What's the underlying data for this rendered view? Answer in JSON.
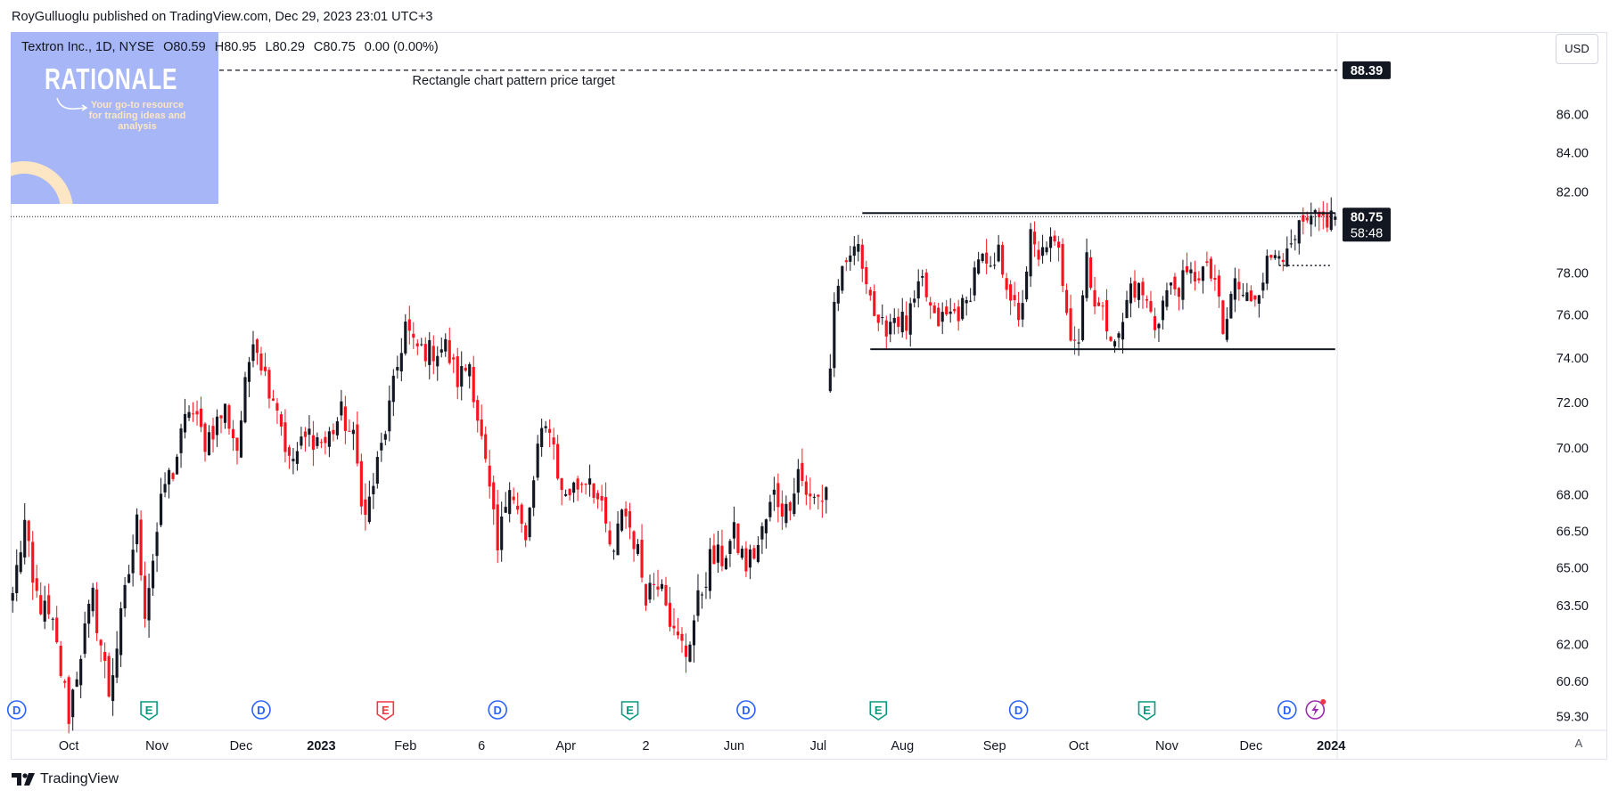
{
  "publisher_line": "RoyGulluoglu published on TradingView.com, Dec 29, 2023 23:01 UTC+3",
  "legend": {
    "symbol": "Textron Inc., 1D, NYSE",
    "open": "O80.59",
    "high": "H80.95",
    "low": "L80.29",
    "close": "C80.75",
    "change": "0.00 (0.00%)"
  },
  "currency_button": "USD",
  "auto_scale_button": "A",
  "logo": {
    "title": "RATIONALE",
    "tagline": "Your go-to resource for trading ideas and analysis"
  },
  "brand": "TradingView",
  "colors": {
    "up": "#131722",
    "down": "#f7141e",
    "event_dividend": "#2962ff",
    "event_earnings_beat": "#089981",
    "event_earnings_miss": "#f23645",
    "event_split": "#9c27b0"
  },
  "chart_data": {
    "type": "candlestick",
    "title": "Textron Inc., 1D, NYSE",
    "scale": "log",
    "ylim": [
      58.8,
      90.5
    ],
    "y_tick_labels": [
      "59.30",
      "60.60",
      "62.00",
      "63.50",
      "65.00",
      "66.50",
      "68.00",
      "70.00",
      "72.00",
      "74.00",
      "76.00",
      "78.00",
      "82.00",
      "84.00",
      "86.00"
    ],
    "x_tick_labels": [
      {
        "label": "Oct",
        "index": 14,
        "bold": false
      },
      {
        "label": "Nov",
        "index": 36,
        "bold": false
      },
      {
        "label": "Dec",
        "index": 57,
        "bold": false
      },
      {
        "label": "2023",
        "index": 77,
        "bold": true
      },
      {
        "label": "Feb",
        "index": 98,
        "bold": false
      },
      {
        "label": "6",
        "index": 117,
        "bold": false
      },
      {
        "label": "Apr",
        "index": 138,
        "bold": false
      },
      {
        "label": "2",
        "index": 158,
        "bold": false
      },
      {
        "label": "Jun",
        "index": 180,
        "bold": false
      },
      {
        "label": "Jul",
        "index": 201,
        "bold": false
      },
      {
        "label": "Aug",
        "index": 222,
        "bold": false
      },
      {
        "label": "Sep",
        "index": 245,
        "bold": false
      },
      {
        "label": "Oct",
        "index": 266,
        "bold": false
      },
      {
        "label": "Nov",
        "index": 288,
        "bold": false
      },
      {
        "label": "Dec",
        "index": 309,
        "bold": false
      },
      {
        "label": "2024",
        "index": 329,
        "bold": true
      }
    ],
    "bars": 331,
    "price_path": [
      [
        0,
        64.0
      ],
      [
        3,
        66.8
      ],
      [
        5,
        64.2
      ],
      [
        10,
        62.6
      ],
      [
        14,
        59.4
      ],
      [
        17,
        61.8
      ],
      [
        20,
        63.8
      ],
      [
        24,
        60.2
      ],
      [
        27,
        62.9
      ],
      [
        31,
        66.8
      ],
      [
        33,
        63.4
      ],
      [
        38,
        68.5
      ],
      [
        40,
        69.0
      ],
      [
        44,
        71.8
      ],
      [
        48,
        70.3
      ],
      [
        53,
        71.7
      ],
      [
        56,
        70.0
      ],
      [
        60,
        75.2
      ],
      [
        63,
        73.2
      ],
      [
        66,
        71.9
      ],
      [
        69,
        69.3
      ],
      [
        74,
        70.6
      ],
      [
        78,
        70.2
      ],
      [
        82,
        71.5
      ],
      [
        85,
        70.3
      ],
      [
        88,
        67.0
      ],
      [
        92,
        70.0
      ],
      [
        95,
        72.6
      ],
      [
        98,
        75.6
      ],
      [
        100,
        74.5
      ],
      [
        104,
        74.3
      ],
      [
        108,
        74.5
      ],
      [
        111,
        73.0
      ],
      [
        114,
        73.8
      ],
      [
        116,
        71.4
      ],
      [
        119,
        68.0
      ],
      [
        121,
        65.6
      ],
      [
        124,
        68.8
      ],
      [
        128,
        65.9
      ],
      [
        131,
        70.0
      ],
      [
        134,
        71.1
      ],
      [
        137,
        68.0
      ],
      [
        141,
        68.4
      ],
      [
        144,
        68.9
      ],
      [
        147,
        67.2
      ],
      [
        150,
        65.3
      ],
      [
        152,
        67.6
      ],
      [
        155,
        66.2
      ],
      [
        158,
        64.1
      ],
      [
        162,
        64.8
      ],
      [
        165,
        62.3
      ],
      [
        168,
        61.7
      ],
      [
        171,
        63.6
      ],
      [
        174,
        65.3
      ],
      [
        177,
        65.4
      ],
      [
        180,
        66.3
      ],
      [
        183,
        65.1
      ],
      [
        186,
        65.9
      ],
      [
        190,
        68.0
      ],
      [
        193,
        67.3
      ],
      [
        196,
        69.1
      ],
      [
        199,
        67.7
      ],
      [
        202,
        67.9
      ],
      [
        203,
        68.4
      ],
      [
        204,
        73.6
      ],
      [
        205,
        76.5
      ],
      [
        206,
        77.6
      ],
      [
        208,
        78.0
      ],
      [
        210,
        79.4
      ],
      [
        213,
        78.0
      ],
      [
        216,
        75.1
      ],
      [
        220,
        76.0
      ],
      [
        223,
        75.5
      ],
      [
        227,
        77.5
      ],
      [
        230,
        75.6
      ],
      [
        233,
        75.9
      ],
      [
        236,
        76.2
      ],
      [
        238,
        76.4
      ],
      [
        241,
        78.9
      ],
      [
        244,
        77.8
      ],
      [
        246,
        78.9
      ],
      [
        249,
        77.0
      ],
      [
        251,
        75.4
      ],
      [
        254,
        79.7
      ],
      [
        256,
        78.4
      ],
      [
        258,
        79.6
      ],
      [
        261,
        78.9
      ],
      [
        264,
        75.3
      ],
      [
        266,
        74.9
      ],
      [
        268,
        79.0
      ],
      [
        270,
        76.6
      ],
      [
        273,
        75.6
      ],
      [
        276,
        74.8
      ],
      [
        279,
        77.4
      ],
      [
        282,
        77.0
      ],
      [
        285,
        75.5
      ],
      [
        288,
        77.1
      ],
      [
        291,
        77.4
      ],
      [
        294,
        77.8
      ],
      [
        297,
        78.1
      ],
      [
        300,
        77.7
      ],
      [
        302,
        74.9
      ],
      [
        305,
        77.7
      ],
      [
        307,
        76.7
      ],
      [
        310,
        77.0
      ],
      [
        313,
        78.4
      ],
      [
        316,
        79.4
      ],
      [
        318,
        78.6
      ],
      [
        321,
        80.0
      ],
      [
        323,
        80.3
      ],
      [
        325,
        80.5
      ],
      [
        327,
        80.6
      ],
      [
        330,
        80.75
      ]
    ],
    "last_price": 80.75,
    "price_label": "80.75",
    "countdown_label": "58:48",
    "target_price": 88.39,
    "target_label": "88.39",
    "annotation_target": "Rectangle chart pattern price target",
    "lines": {
      "rectangle_top": {
        "price": 80.75,
        "from_index": 212,
        "to_index": 330
      },
      "rectangle_bottom": {
        "price": 74.4,
        "from_index": 214,
        "to_index": 330
      },
      "dotted_mid": {
        "price": 78.35,
        "from_index": 316,
        "to_index": 329
      }
    },
    "events": [
      {
        "type": "D",
        "index": 1
      },
      {
        "type": "E",
        "index": 34
      },
      {
        "type": "D",
        "index": 62
      },
      {
        "type": "E-miss",
        "index": 93
      },
      {
        "type": "D",
        "index": 121
      },
      {
        "type": "E",
        "index": 154
      },
      {
        "type": "D",
        "index": 183
      },
      {
        "type": "E",
        "index": 216
      },
      {
        "type": "D",
        "index": 251
      },
      {
        "type": "E",
        "index": 283
      },
      {
        "type": "D",
        "index": 318
      },
      {
        "type": "S",
        "index": 325
      }
    ]
  }
}
